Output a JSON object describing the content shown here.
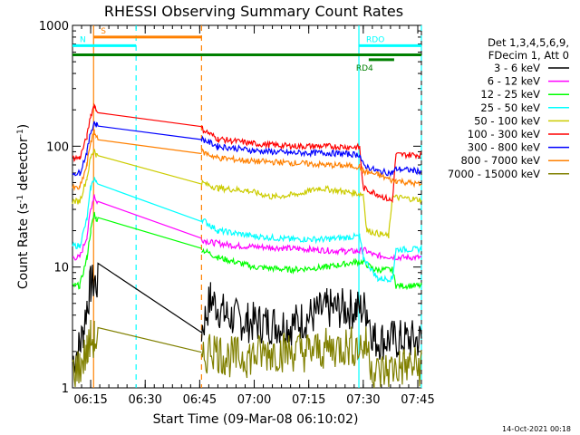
{
  "chart_data": {
    "type": "line",
    "title": "RHESSI Observing Summary Count Rates",
    "xlabel": "Start Time (09-Mar-08 06:10:02)",
    "ylabel_prefix": "Count Rate (s",
    "ylabel_sup": "-1",
    "ylabel_suffix": " detector",
    "ylabel_end": ")",
    "yscale": "log",
    "ylim": [
      1,
      1000
    ],
    "xlim_minutes": [
      0,
      96
    ],
    "x_tick_labels": [
      {
        "min": 5,
        "label": "06:15"
      },
      {
        "min": 20,
        "label": "06:30"
      },
      {
        "min": 35,
        "label": "06:45"
      },
      {
        "min": 50,
        "label": "07:00"
      },
      {
        "min": 65,
        "label": "07:15"
      },
      {
        "min": 80,
        "label": "07:30"
      },
      {
        "min": 95,
        "label": "07:45"
      }
    ],
    "y_tick_labels": [
      {
        "value": 1,
        "label": "1"
      },
      {
        "value": 10,
        "label": "10"
      },
      {
        "value": 100,
        "label": "100"
      },
      {
        "value": 1000,
        "label": "1000"
      }
    ],
    "legend_header": [
      "Det 1,3,4,5,6,9,",
      "FDecim 1, Att 0"
    ],
    "timestamp": "14-Oct-2021 00:18",
    "series": [
      {
        "name": "3 - 6 keV",
        "color": "#000000",
        "pts": [
          [
            0,
            1.7
          ],
          [
            2,
            2.2
          ],
          [
            3,
            3
          ],
          [
            4,
            5
          ],
          [
            5,
            7
          ],
          [
            6,
            7.5
          ],
          [
            35.5,
            3
          ],
          [
            38,
            5.5
          ],
          [
            42,
            4
          ],
          [
            48,
            3.5
          ],
          [
            60,
            3.3
          ],
          [
            70,
            4.5
          ],
          [
            78,
            4.5
          ],
          [
            81,
            4.5
          ],
          [
            83,
            2.5
          ],
          [
            90,
            2.5
          ],
          [
            96,
            2.5
          ]
        ]
      },
      {
        "name": "6 - 12 keV",
        "color": "#ff00ff",
        "pts": [
          [
            0,
            12
          ],
          [
            2,
            12
          ],
          [
            4,
            18
          ],
          [
            5,
            30
          ],
          [
            6,
            40
          ],
          [
            6.5,
            35
          ],
          [
            35.5,
            17
          ],
          [
            38,
            16
          ],
          [
            45,
            15
          ],
          [
            55,
            14.5
          ],
          [
            65,
            14
          ],
          [
            75,
            13.5
          ],
          [
            79,
            13.5
          ],
          [
            80,
            14
          ],
          [
            83,
            12.5
          ],
          [
            90,
            12
          ],
          [
            96,
            12
          ]
        ]
      },
      {
        "name": "12 - 25 keV",
        "color": "#00ff00",
        "pts": [
          [
            0,
            7
          ],
          [
            2,
            7
          ],
          [
            4,
            12
          ],
          [
            5,
            20
          ],
          [
            6,
            28
          ],
          [
            6.5,
            25
          ],
          [
            35.5,
            14
          ],
          [
            40,
            12
          ],
          [
            50,
            10
          ],
          [
            60,
            9.5
          ],
          [
            70,
            10
          ],
          [
            78,
            11
          ],
          [
            80,
            11
          ],
          [
            83,
            9.5
          ],
          [
            88,
            9.5
          ],
          [
            89,
            7
          ],
          [
            96,
            7
          ]
        ]
      },
      {
        "name": "25 - 50 keV",
        "color": "#00ffff",
        "pts": [
          [
            0,
            15
          ],
          [
            2,
            15
          ],
          [
            4,
            25
          ],
          [
            5,
            45
          ],
          [
            6,
            55
          ],
          [
            6.5,
            50
          ],
          [
            35.5,
            25
          ],
          [
            40,
            20
          ],
          [
            50,
            18
          ],
          [
            60,
            17
          ],
          [
            70,
            17
          ],
          [
            79,
            18
          ],
          [
            80,
            12
          ],
          [
            84,
            8
          ],
          [
            88,
            8
          ],
          [
            89,
            14
          ],
          [
            96,
            14
          ]
        ]
      },
      {
        "name": "50 - 100 keV",
        "color": "#cccc00",
        "pts": [
          [
            0,
            35
          ],
          [
            2,
            35
          ],
          [
            4,
            55
          ],
          [
            5,
            80
          ],
          [
            6,
            95
          ],
          [
            6.5,
            85
          ],
          [
            35.5,
            50
          ],
          [
            40,
            45
          ],
          [
            48,
            43
          ],
          [
            55,
            38
          ],
          [
            62,
            40
          ],
          [
            68,
            45
          ],
          [
            75,
            42
          ],
          [
            80,
            40
          ],
          [
            81,
            20
          ],
          [
            87,
            18
          ],
          [
            88,
            38
          ],
          [
            96,
            36
          ]
        ]
      },
      {
        "name": "100 - 300 keV",
        "color": "#ff0000",
        "pts": [
          [
            0,
            80
          ],
          [
            2,
            80
          ],
          [
            4,
            120
          ],
          [
            5,
            180
          ],
          [
            6,
            220
          ],
          [
            6.5,
            200
          ],
          [
            35.5,
            140
          ],
          [
            40,
            115
          ],
          [
            50,
            105
          ],
          [
            60,
            100
          ],
          [
            70,
            100
          ],
          [
            79,
            98
          ],
          [
            80,
            45
          ],
          [
            84,
            40
          ],
          [
            88,
            35
          ],
          [
            89,
            85
          ],
          [
            96,
            85
          ]
        ]
      },
      {
        "name": "300 - 800 keV",
        "color": "#0000ff",
        "pts": [
          [
            0,
            60
          ],
          [
            2,
            60
          ],
          [
            4,
            90
          ],
          [
            5,
            130
          ],
          [
            6,
            160
          ],
          [
            6.5,
            150
          ],
          [
            35.5,
            115
          ],
          [
            40,
            100
          ],
          [
            50,
            92
          ],
          [
            60,
            88
          ],
          [
            70,
            88
          ],
          [
            79,
            85
          ],
          [
            80,
            70
          ],
          [
            84,
            62
          ],
          [
            88,
            60
          ],
          [
            89,
            65
          ],
          [
            96,
            62
          ]
        ]
      },
      {
        "name": "800 - 7000 keV",
        "color": "#ff8000",
        "pts": [
          [
            0,
            45
          ],
          [
            2,
            45
          ],
          [
            4,
            70
          ],
          [
            5,
            110
          ],
          [
            6,
            130
          ],
          [
            6.5,
            120
          ],
          [
            35.5,
            90
          ],
          [
            40,
            80
          ],
          [
            50,
            75
          ],
          [
            60,
            73
          ],
          [
            70,
            70
          ],
          [
            79,
            68
          ],
          [
            80,
            62
          ],
          [
            84,
            58
          ],
          [
            88,
            52
          ],
          [
            89,
            52
          ],
          [
            96,
            48
          ]
        ]
      },
      {
        "name": "7000 - 15000 keV",
        "color": "#808000",
        "pts": [
          [
            0,
            1.4
          ],
          [
            2,
            1.5
          ],
          [
            4,
            2
          ],
          [
            5,
            2.5
          ],
          [
            6,
            2.5
          ],
          [
            35.5,
            1.5
          ],
          [
            38,
            2.2
          ],
          [
            42,
            1.8
          ],
          [
            48,
            1.8
          ],
          [
            55,
            2
          ],
          [
            65,
            2
          ],
          [
            75,
            2.2
          ],
          [
            81,
            2.2
          ],
          [
            83,
            1.3
          ],
          [
            90,
            1.5
          ],
          [
            96,
            1.5
          ]
        ]
      }
    ],
    "markers": [
      {
        "label": "S",
        "color": "#ff8000",
        "start": 5.8,
        "end": 35.5,
        "level": 800
      },
      {
        "label": "N",
        "color": "#00ffff",
        "start": 0,
        "end": 17.5,
        "level": 680
      },
      {
        "label": "RDO",
        "color": "#00ffff",
        "start": 78.8,
        "end": 96,
        "level": 680
      },
      {
        "label": "RD4",
        "color": "#008000",
        "start": 81.5,
        "end": 88.5,
        "level": 520
      },
      {
        "label": "",
        "color": "#008000",
        "start": 0,
        "end": 96,
        "level": 570
      }
    ],
    "vlines": [
      {
        "min": 5.8,
        "color": "#ff8000",
        "dash": false
      },
      {
        "min": 17.5,
        "color": "#00ffff",
        "dash": true
      },
      {
        "min": 35.5,
        "color": "#ff8000",
        "dash": true
      },
      {
        "min": 78.8,
        "color": "#00ffff",
        "dash": false
      },
      {
        "min": 96,
        "color": "#00ffff",
        "dash": true
      }
    ]
  }
}
